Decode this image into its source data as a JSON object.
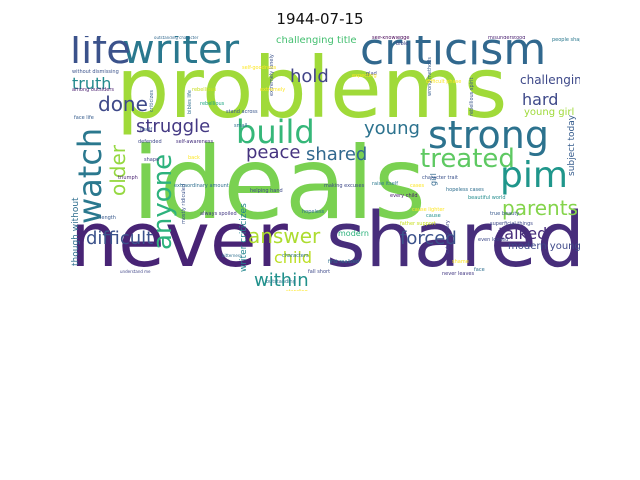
{
  "title": "1944-07-15",
  "words": [
    {
      "text": "never",
      "color": "#482475"
    },
    {
      "text": "shared",
      "color": "#472d7b"
    },
    {
      "text": "ideals",
      "color": "#7ad151"
    },
    {
      "text": "problems",
      "color": "#a0da39"
    },
    {
      "text": "criticism",
      "color": "#31688e"
    },
    {
      "text": "writer",
      "color": "#2a788e"
    },
    {
      "text": "life",
      "color": "#3b528b"
    },
    {
      "text": "strong",
      "color": "#2c728e"
    },
    {
      "text": "build",
      "color": "#35b779"
    },
    {
      "text": "pim",
      "color": "#1f968b"
    },
    {
      "text": "treated",
      "color": "#5ec962"
    },
    {
      "text": "watch",
      "color": "#2a788e"
    },
    {
      "text": "anyone",
      "color": "#2db27d"
    },
    {
      "text": "struggle",
      "color": "#443983"
    },
    {
      "text": "young",
      "color": "#2c728e"
    },
    {
      "text": "parents",
      "color": "#84d44b"
    },
    {
      "text": "shared",
      "color": "#31688e"
    },
    {
      "text": "peace",
      "color": "#46337f"
    },
    {
      "text": "older",
      "color": "#95d840"
    },
    {
      "text": "difficult",
      "color": "#3b528b"
    },
    {
      "text": "answer",
      "color": "#addc30"
    },
    {
      "text": "forced",
      "color": "#3b528b"
    },
    {
      "text": "talked",
      "color": "#472d7b"
    },
    {
      "text": "within",
      "color": "#21918c"
    },
    {
      "text": "child",
      "color": "#bddf26"
    },
    {
      "text": "done",
      "color": "#3e4989"
    },
    {
      "text": "truth",
      "color": "#238a8d"
    },
    {
      "text": "hold",
      "color": "#414487"
    },
    {
      "text": "hard",
      "color": "#3e4989"
    },
    {
      "text": "challenging",
      "color": "#3e4989"
    },
    {
      "text": "young girl",
      "color": "#9fda3a"
    },
    {
      "text": "challenging title",
      "color": "#44bf70"
    },
    {
      "text": "modern young",
      "color": "#3e4989"
    },
    {
      "text": "subject today",
      "color": "#365c8d"
    },
    {
      "text": "though without",
      "color": "#2e6e8e"
    },
    {
      "text": "writer criticizes",
      "color": "#24878e"
    },
    {
      "text": "girl",
      "color": "#31688e"
    },
    {
      "text": "modern",
      "color": "#2db27d"
    },
    {
      "text": "self-knowledge",
      "color": "#440154"
    },
    {
      "text": "misunderstood",
      "color": "#481f70"
    },
    {
      "text": "people shape",
      "color": "#2a788e"
    },
    {
      "text": "bibles life",
      "color": "#2e6e8e"
    },
    {
      "text": "rebellious",
      "color": "#22a884"
    },
    {
      "text": "extremely lonely",
      "color": "#3b528b"
    },
    {
      "text": "outstanding character",
      "color": "#31688e"
    },
    {
      "text": "helping hand",
      "color": "#3e4989"
    },
    {
      "text": "character trait",
      "color": "#3b528b"
    },
    {
      "text": "hopeless cases",
      "color": "#2e6e8e"
    },
    {
      "text": "beautiful world",
      "color": "#228c8d"
    },
    {
      "text": "superficial things",
      "color": "#3e4989"
    },
    {
      "text": "true beauty",
      "color": "#38598c"
    },
    {
      "text": "every child",
      "color": "#481a6c"
    },
    {
      "text": "face life",
      "color": "#365c8d"
    },
    {
      "text": "making excuses",
      "color": "#3e4989"
    },
    {
      "text": "raise itself",
      "color": "#2a788e"
    },
    {
      "text": "extraordinary",
      "color": "#414487"
    },
    {
      "text": "hopeless",
      "color": "#2e6e8e"
    },
    {
      "text": "always spoiled",
      "color": "#443983"
    },
    {
      "text": "understand me",
      "color": "#404688"
    },
    {
      "text": "fall short",
      "color": "#3e4989"
    },
    {
      "text": "first realized",
      "color": "#2d708e"
    },
    {
      "text": "criticizes",
      "color": "#34618d"
    },
    {
      "text": "glad",
      "color": "#3e4989"
    },
    {
      "text": "wrong methods",
      "color": "#365c8d"
    },
    {
      "text": "rebellious spirit",
      "color": "#39568c"
    },
    {
      "text": "self-awareness",
      "color": "#46307e"
    },
    {
      "text": "stand across",
      "color": "#39568c"
    },
    {
      "text": "defended",
      "color": "#3e4989"
    },
    {
      "text": "triumph",
      "color": "#481f70"
    },
    {
      "text": "outstanding",
      "color": "#2a788e"
    },
    {
      "text": "among outsiders",
      "color": "#481b6d"
    },
    {
      "text": "without dismissing",
      "color": "#3b528b"
    },
    {
      "text": "length",
      "color": "#38598c"
    },
    {
      "text": "bitterness",
      "color": "#2e6e8e"
    },
    {
      "text": "characters",
      "color": "#2d708e"
    },
    {
      "text": "even looked",
      "color": "#3e4989"
    },
    {
      "text": "never leaves",
      "color": "#443983"
    },
    {
      "text": "cause",
      "color": "#21918c"
    },
    {
      "text": "face",
      "color": "#2e6e8e"
    },
    {
      "text": "shape",
      "color": "#414487"
    },
    {
      "text": "small",
      "color": "#2e6e8e"
    },
    {
      "text": "bible",
      "color": "#3e4989"
    },
    {
      "text": "itself",
      "color": "#38598c"
    },
    {
      "text": "mostly ridiculed",
      "color": "#3b528b"
    },
    {
      "text": "extraordinary amount",
      "color": "#2e6e8e"
    },
    {
      "text": "expecting",
      "color": "#fde725"
    },
    {
      "text": "standing",
      "color": "#fde725"
    },
    {
      "text": "cases",
      "color": "#fde725"
    },
    {
      "text": "difficult phase",
      "color": "#fde725"
    },
    {
      "text": "self-goodness",
      "color": "#fde725"
    },
    {
      "text": "back",
      "color": "#fde725"
    },
    {
      "text": "rebellious",
      "color": "#c8e020"
    },
    {
      "text": "father support",
      "color": "#c8e020"
    },
    {
      "text": "shame",
      "color": "#fde725"
    },
    {
      "text": "cause lighter",
      "color": "#fde725"
    },
    {
      "text": "extremely",
      "color": "#fde725"
    }
  ]
}
